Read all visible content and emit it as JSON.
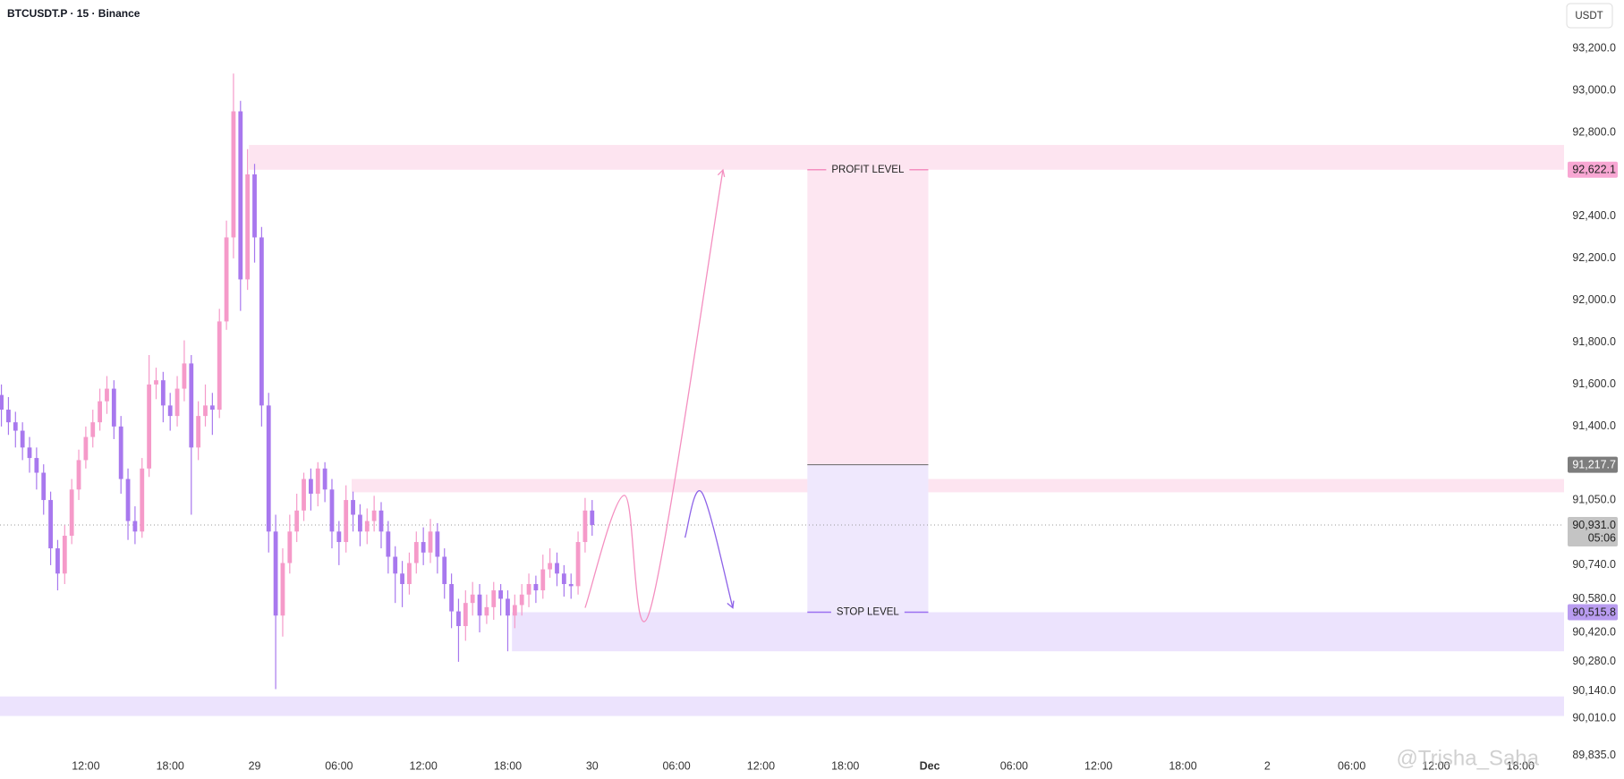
{
  "chart_data": {
    "type": "candlestick",
    "title": "BTCUSDT.P · 15 · Binance",
    "currency": "USDT",
    "watermark": "@Trisha_Saha",
    "xlim": [
      5.9,
      117.1
    ],
    "ylim": [
      89820,
      93430
    ],
    "xticks": [
      {
        "value": 12,
        "label": "12:00"
      },
      {
        "value": 18,
        "label": "18:00"
      },
      {
        "value": 24,
        "label": "29"
      },
      {
        "value": 30,
        "label": "06:00"
      },
      {
        "value": 36,
        "label": "12:00"
      },
      {
        "value": 42,
        "label": "18:00"
      },
      {
        "value": 48,
        "label": "30"
      },
      {
        "value": 54,
        "label": "06:00"
      },
      {
        "value": 60,
        "label": "12:00"
      },
      {
        "value": 66,
        "label": "18:00"
      },
      {
        "value": 72,
        "label": "Dec"
      },
      {
        "value": 78,
        "label": "06:00"
      },
      {
        "value": 84,
        "label": "12:00"
      },
      {
        "value": 90,
        "label": "18:00"
      },
      {
        "value": 96,
        "label": "2"
      },
      {
        "value": 102,
        "label": "06:00"
      },
      {
        "value": 108,
        "label": "12:00"
      },
      {
        "value": 114,
        "label": "18:00"
      }
    ],
    "yticks": [
      {
        "value": 93200,
        "label": "93,200.0"
      },
      {
        "value": 93000,
        "label": "93,000.0"
      },
      {
        "value": 92800,
        "label": "92,800.0"
      },
      {
        "value": 92400,
        "label": "92,400.0"
      },
      {
        "value": 92200,
        "label": "92,200.0"
      },
      {
        "value": 92000,
        "label": "92,000.0"
      },
      {
        "value": 91800,
        "label": "91,800.0"
      },
      {
        "value": 91600,
        "label": "91,600.0"
      },
      {
        "value": 91400,
        "label": "91,400.0"
      },
      {
        "value": 91050,
        "label": "91,050.0"
      },
      {
        "value": 90740,
        "label": "90,740.0"
      },
      {
        "value": 90580,
        "label": "90,580.0"
      },
      {
        "value": 90420,
        "label": "90,420.0"
      },
      {
        "value": 90280,
        "label": "90,280.0"
      },
      {
        "value": 90140,
        "label": "90,140.0"
      },
      {
        "value": 90010,
        "label": "90,010.0"
      },
      {
        "value": 89835,
        "label": "89,835.0"
      }
    ],
    "up_color": "#f59ac9",
    "down_color": "#a878ee",
    "candles": {
      "x": [
        6.0,
        6.5,
        7.0,
        7.5,
        8.0,
        8.5,
        9.0,
        9.5,
        10.0,
        10.5,
        11.0,
        11.5,
        12.0,
        12.5,
        13.0,
        13.5,
        14.0,
        14.5,
        15.0,
        15.5,
        16.0,
        16.5,
        17.0,
        17.5,
        18.0,
        18.5,
        19.0,
        19.5,
        20.0,
        20.5,
        21.0,
        21.5,
        22.0,
        22.5,
        23.0,
        23.5,
        24.0,
        24.5,
        25.0,
        25.5,
        26.0,
        26.5,
        27.0,
        27.5,
        28.0,
        28.5,
        29.0,
        29.5,
        30.0,
        30.5,
        31.0,
        31.5,
        32.0,
        32.5,
        33.0,
        33.5,
        34.0,
        34.5,
        35.0,
        35.5,
        36.0,
        36.5,
        37.0,
        37.5,
        38.0,
        38.5,
        39.0,
        39.5,
        40.0,
        40.5,
        41.0,
        41.5,
        42.0,
        42.5,
        43.0,
        43.5,
        44.0,
        44.5,
        45.0,
        45.5,
        46.0,
        46.5,
        47.0,
        47.5,
        48.0
      ],
      "open": [
        91550,
        91480,
        91420,
        91380,
        91300,
        91250,
        91180,
        91050,
        90820,
        90700,
        90880,
        91100,
        91240,
        91350,
        91420,
        91520,
        91580,
        91400,
        91150,
        90950,
        90900,
        91200,
        91600,
        91620,
        91500,
        91450,
        91580,
        91700,
        91300,
        91450,
        91500,
        91480,
        91900,
        92300,
        92900,
        92100,
        92600,
        92300,
        91500,
        90900,
        90500,
        90750,
        90900,
        91000,
        91150,
        91080,
        91200,
        91100,
        90900,
        90850,
        91050,
        90980,
        90900,
        90950,
        91000,
        90900,
        90780,
        90700,
        90650,
        90750,
        90850,
        90800,
        90900,
        90780,
        90650,
        90520,
        90450,
        90560,
        90600,
        90500,
        90540,
        90620,
        90580,
        90500,
        90550,
        90600,
        90650,
        90620,
        90720,
        90750,
        90700,
        90650,
        90640,
        90850,
        91000
      ],
      "high": [
        91600,
        91540,
        91470,
        91420,
        91350,
        91300,
        91220,
        91090,
        90860,
        90930,
        91150,
        91290,
        91400,
        91480,
        91580,
        91640,
        91620,
        91450,
        91200,
        91020,
        91250,
        91740,
        91680,
        91660,
        91560,
        91640,
        91810,
        91740,
        91520,
        91600,
        91560,
        91960,
        92380,
        93080,
        92950,
        92720,
        92650,
        92350,
        91560,
        90980,
        90820,
        90980,
        91080,
        91180,
        91200,
        91230,
        91230,
        91150,
        90950,
        91120,
        91090,
        91030,
        91010,
        91070,
        91040,
        90950,
        90830,
        90760,
        90800,
        90900,
        90920,
        90960,
        90940,
        90820,
        90700,
        90580,
        90620,
        90660,
        90650,
        90600,
        90660,
        90650,
        90620,
        90600,
        90650,
        90700,
        90690,
        90790,
        90820,
        90800,
        90740,
        90700,
        90900,
        91060,
        91050
      ],
      "low": [
        91400,
        91360,
        91300,
        91240,
        91180,
        91100,
        90980,
        90740,
        90620,
        90650,
        90840,
        91050,
        91200,
        91300,
        91380,
        91460,
        91340,
        91080,
        90860,
        90840,
        90870,
        91160,
        91530,
        91420,
        91380,
        91400,
        91520,
        90980,
        91240,
        91400,
        91360,
        91440,
        91860,
        92200,
        91950,
        92050,
        92180,
        91400,
        90800,
        90150,
        90400,
        90700,
        90850,
        90950,
        91000,
        91020,
        91040,
        90820,
        90740,
        90800,
        90900,
        90830,
        90840,
        90900,
        90820,
        90700,
        90560,
        90540,
        90600,
        90700,
        90740,
        90750,
        90700,
        90580,
        90440,
        90280,
        90380,
        90500,
        90420,
        90460,
        90480,
        90500,
        90330,
        90440,
        90500,
        90540,
        90560,
        90580,
        90680,
        90640,
        90590,
        90580,
        90600,
        90800,
        90880
      ],
      "close": [
        91480,
        91420,
        91380,
        91300,
        91250,
        91180,
        91050,
        90820,
        90700,
        90880,
        91100,
        91240,
        91350,
        91420,
        91520,
        91580,
        91400,
        91150,
        90950,
        90900,
        91200,
        91600,
        91620,
        91500,
        91450,
        91580,
        91700,
        91300,
        91450,
        91500,
        91480,
        91900,
        92300,
        92900,
        92100,
        92600,
        92300,
        91500,
        90900,
        90500,
        90750,
        90900,
        91000,
        91150,
        91080,
        91200,
        91100,
        90900,
        90850,
        91050,
        90980,
        90900,
        90950,
        91000,
        90900,
        90780,
        90700,
        90650,
        90750,
        90850,
        90800,
        90900,
        90780,
        90650,
        90520,
        90450,
        90560,
        90600,
        90500,
        90540,
        90620,
        90580,
        90500,
        90550,
        90600,
        90650,
        90620,
        90720,
        90750,
        90700,
        90650,
        90640,
        90850,
        91000,
        90931
      ]
    },
    "zones": [
      {
        "x0": 23.6,
        "from": 92622.1,
        "to": 92740,
        "color": "#fde4f0"
      },
      {
        "x0": 30.9,
        "from": 91087,
        "to": 91150,
        "color": "#fde4f0"
      },
      {
        "x0": 42.3,
        "from": 90330,
        "to": 90515.8,
        "color": "#ece3fd"
      },
      {
        "x0": 5.9,
        "from": 90022,
        "to": 90115,
        "color": "#ece3fd"
      }
    ],
    "position": {
      "x0": 63.3,
      "x1": 71.9,
      "target": 92622.1,
      "entry": 91217.7,
      "stop": 90515.8,
      "target_label": "PROFIT LEVEL",
      "stop_label": "STOP LEVEL",
      "target_color": "#f48fc0",
      "stop_color": "#9b6ff0",
      "target_fill": "#fde6f1",
      "stop_fill": "#efe8fd",
      "entry_color": "#666666"
    },
    "projections": [
      {
        "color": "#f48fc0",
        "x": [
          47.5,
          50.3,
          52.1,
          57.3
        ],
        "y": [
          90537,
          91072,
          90522,
          92621
        ]
      },
      {
        "color": "#8e63e8",
        "x": [
          54.6,
          55.8,
          58.0
        ],
        "y": [
          90871,
          91086,
          90537
        ]
      }
    ],
    "current_price": {
      "value": 90931,
      "label": "90,931.0",
      "countdown": "05:06",
      "color": "#c4c4c4"
    },
    "price_labels": [
      {
        "value": 92622.1,
        "label": "92,622.1",
        "color": "#f8a7d3",
        "text_color": "#222222"
      },
      {
        "value": 91217.7,
        "label": "91,217.7",
        "color": "#7d7d7d",
        "text_color": "#ffffff"
      },
      {
        "value": 90515.8,
        "label": "90,515.8",
        "color": "#b99cf0",
        "text_color": "#222222"
      }
    ]
  }
}
